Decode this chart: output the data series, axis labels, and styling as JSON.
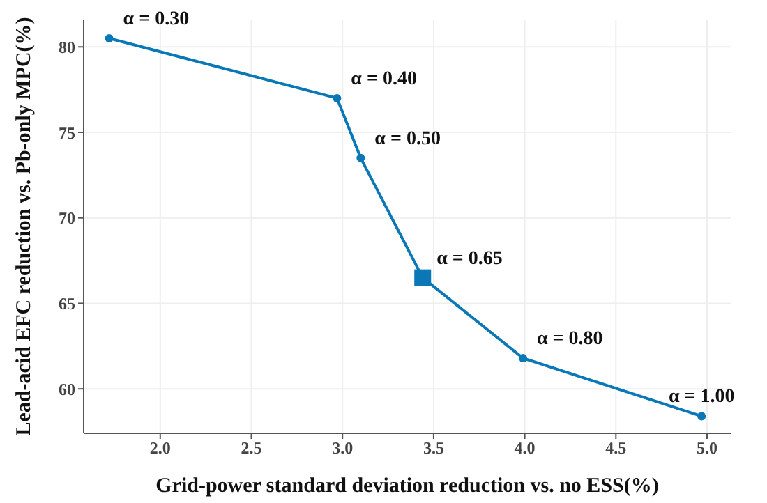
{
  "chart_data": {
    "type": "line",
    "xlabel": "Grid-power standard deviation reduction vs. no ESS(%)",
    "ylabel": "Lead-acid EFC reduction vs. Pb-only MPC(%)",
    "x": [
      1.72,
      2.97,
      3.1,
      3.44,
      3.99,
      4.97
    ],
    "series": [
      {
        "color": "#0a77b7",
        "marker": "circle",
        "values": [
          80.5,
          77.0,
          73.5,
          66.5,
          61.8,
          58.4
        ]
      },
      {
        "type": "scatter",
        "color": "#0a77b7",
        "marker": "square",
        "x": [
          3.44
        ],
        "values": [
          66.5
        ]
      }
    ],
    "xlim": [
      1.58,
      5.13
    ],
    "xticks": [
      {
        "value": 2,
        "label": "2.0"
      },
      {
        "value": 2.5,
        "label": "2.5"
      },
      {
        "value": 3,
        "label": "3.0"
      },
      {
        "value": 3.5,
        "label": "3.5"
      },
      {
        "value": 4,
        "label": "4.0"
      },
      {
        "value": 4.5,
        "label": "4.5"
      },
      {
        "value": 5,
        "label": "5.0"
      }
    ],
    "ylim": [
      57.4,
      81.6
    ],
    "yticks": [
      60,
      65,
      70,
      75,
      80
    ],
    "grid": true,
    "line_style": "solid",
    "annotations": [
      {
        "text": "α = 0.30",
        "x": 1.72,
        "y": 80.5
      },
      {
        "text": "α = 0.40",
        "x": 2.97,
        "y": 77.0
      },
      {
        "text": "α = 0.50",
        "x": 3.1,
        "y": 73.5
      },
      {
        "text": "α = 0.65",
        "x": 3.44,
        "y": 66.5
      },
      {
        "text": "α = 0.80",
        "x": 3.99,
        "y": 61.8
      },
      {
        "text": "α = 1.00",
        "x": 4.97,
        "y": 58.4
      }
    ]
  }
}
